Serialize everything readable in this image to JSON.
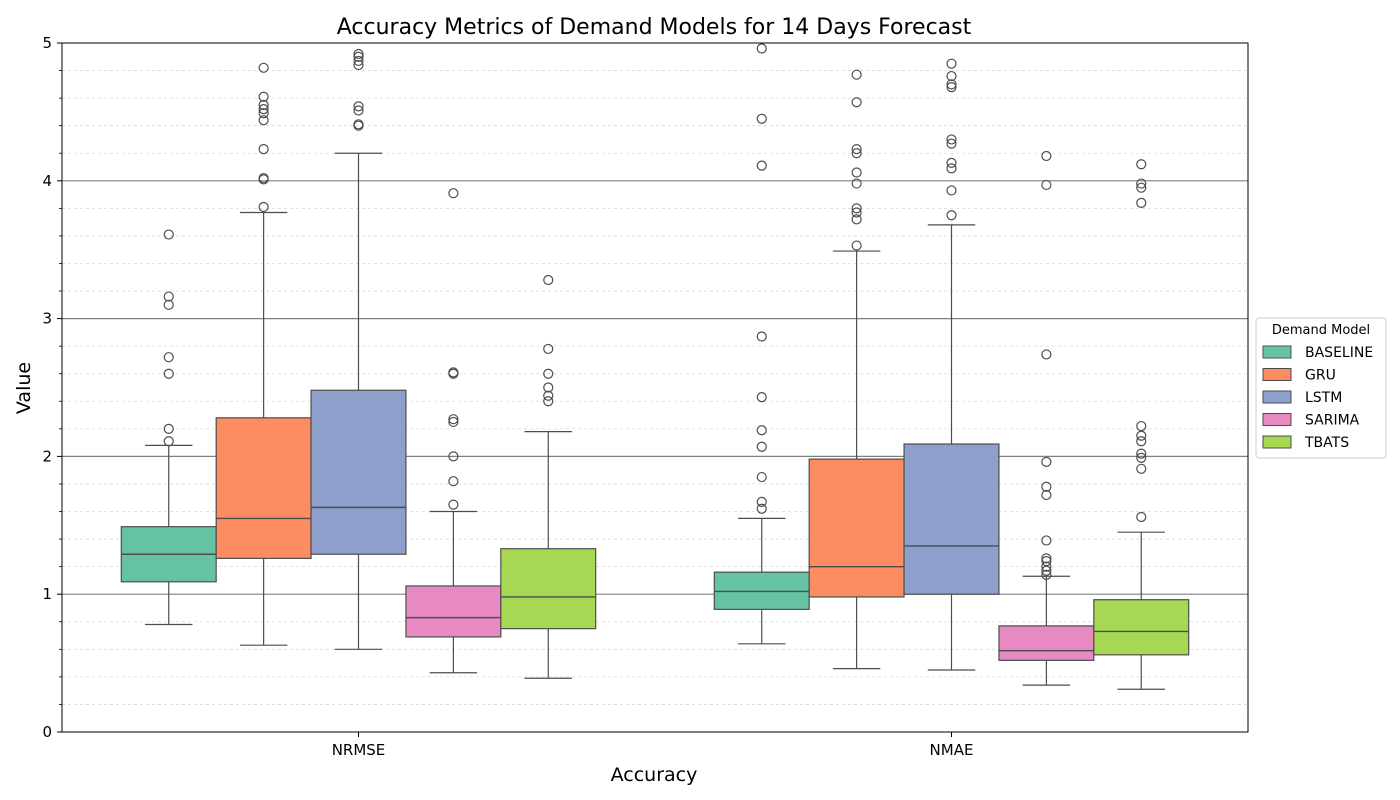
{
  "chart_data": {
    "type": "box",
    "title": "Accuracy Metrics of Demand Models for 14 Days Forecast",
    "xlabel": "Accuracy",
    "ylabel": "Value",
    "ylim": [
      0,
      5
    ],
    "yticks": [
      0,
      1,
      2,
      3,
      4,
      5
    ],
    "grid": "major horizontal solid, minor horizontal dashed",
    "legend": {
      "title": "Demand Model",
      "placement": "outside-right"
    },
    "categories": [
      "NRMSE",
      "NMAE"
    ],
    "series": [
      {
        "name": "BASELINE",
        "color": "#66c2a5",
        "boxes": [
          {
            "whisker_low": 0.78,
            "q1": 1.09,
            "median": 1.29,
            "q3": 1.49,
            "whisker_high": 2.08,
            "outliers": [
              2.11,
              2.2,
              2.6,
              2.72,
              3.1,
              3.16,
              3.61
            ]
          },
          {
            "whisker_low": 0.64,
            "q1": 0.89,
            "median": 1.02,
            "q3": 1.16,
            "whisker_high": 1.55,
            "outliers": [
              1.62,
              1.67,
              1.85,
              2.07,
              2.19,
              2.43,
              2.87,
              4.11,
              4.45,
              4.96
            ]
          }
        ]
      },
      {
        "name": "GRU",
        "color": "#fc8d62",
        "boxes": [
          {
            "whisker_low": 0.63,
            "q1": 1.26,
            "median": 1.55,
            "q3": 2.28,
            "whisker_high": 3.77,
            "outliers": [
              3.81,
              4.01,
              4.02,
              4.23,
              4.44,
              4.49,
              4.52,
              4.55,
              4.61,
              4.82
            ]
          },
          {
            "whisker_low": 0.46,
            "q1": 0.98,
            "median": 1.2,
            "q3": 1.98,
            "whisker_high": 3.49,
            "outliers": [
              3.53,
              3.72,
              3.77,
              3.8,
              3.98,
              4.06,
              4.2,
              4.23,
              4.57,
              4.77
            ]
          }
        ]
      },
      {
        "name": "LSTM",
        "color": "#8da0cb",
        "boxes": [
          {
            "whisker_low": 0.6,
            "q1": 1.29,
            "median": 1.63,
            "q3": 2.48,
            "whisker_high": 4.2,
            "outliers": [
              4.4,
              4.41,
              4.51,
              4.54,
              4.84,
              4.87,
              4.9,
              4.92
            ]
          },
          {
            "whisker_low": 0.45,
            "q1": 1.0,
            "median": 1.35,
            "q3": 2.09,
            "whisker_high": 3.68,
            "outliers": [
              3.75,
              3.93,
              4.09,
              4.13,
              4.27,
              4.3,
              4.68,
              4.7,
              4.76,
              4.85
            ]
          }
        ]
      },
      {
        "name": "SARIMA",
        "color": "#e78ac3",
        "boxes": [
          {
            "whisker_low": 0.43,
            "q1": 0.69,
            "median": 0.83,
            "q3": 1.06,
            "whisker_high": 1.6,
            "outliers": [
              1.65,
              1.82,
              2.0,
              2.25,
              2.27,
              2.6,
              2.61,
              3.91
            ]
          },
          {
            "whisker_low": 0.34,
            "q1": 0.52,
            "median": 0.59,
            "q3": 0.77,
            "whisker_high": 1.13,
            "outliers": [
              1.14,
              1.17,
              1.2,
              1.24,
              1.26,
              1.39,
              1.72,
              1.78,
              1.96,
              2.74,
              3.97,
              4.18
            ]
          }
        ]
      },
      {
        "name": "TBATS",
        "color": "#a6d854",
        "boxes": [
          {
            "whisker_low": 0.39,
            "q1": 0.75,
            "median": 0.98,
            "q3": 1.33,
            "whisker_high": 2.18,
            "outliers": [
              2.4,
              2.44,
              2.5,
              2.6,
              2.78,
              3.28
            ]
          },
          {
            "whisker_low": 0.31,
            "q1": 0.56,
            "median": 0.73,
            "q3": 0.96,
            "whisker_high": 1.45,
            "outliers": [
              1.56,
              1.91,
              1.99,
              2.02,
              2.11,
              2.15,
              2.22,
              3.84,
              3.95,
              3.98,
              4.12
            ]
          }
        ]
      }
    ]
  }
}
